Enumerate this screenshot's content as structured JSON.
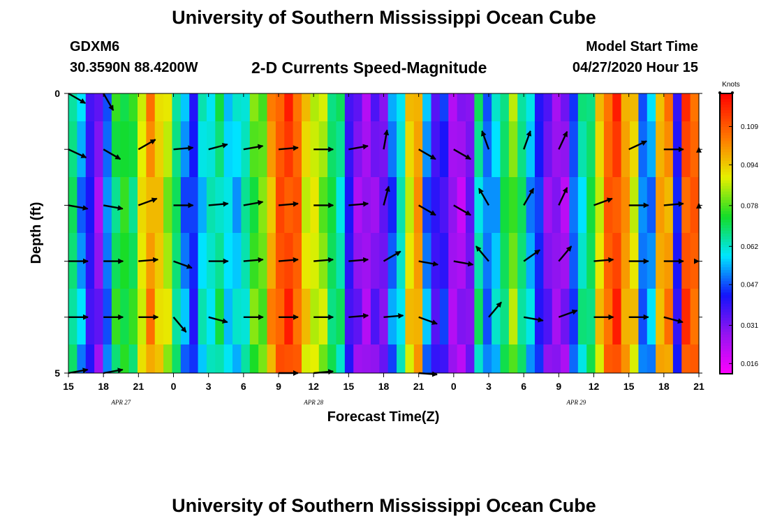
{
  "header": {
    "title": "University of Southern Mississippi Ocean Cube",
    "station_id": "GDXM6",
    "coordinates": "30.3590N 88.4200W",
    "subtitle": "2-D Currents Speed-Magnitude",
    "model_label": "Model Start Time",
    "model_time": "04/27/2020 Hour 15"
  },
  "footer": {
    "title": "University of Southern Mississippi Ocean Cube"
  },
  "chart_data": {
    "type": "heatmap",
    "title": "2-D Currents Speed-Magnitude",
    "xlabel": "Forecast Time(Z)",
    "ylabel": "Depth (ft)",
    "x_tick_labels": [
      "15",
      "18",
      "21",
      "0",
      "3",
      "6",
      "9",
      "12",
      "15",
      "18",
      "21",
      "0",
      "3",
      "6",
      "9",
      "12",
      "15",
      "18",
      "21"
    ],
    "x_range_hours": [
      0,
      54
    ],
    "date_labels": [
      {
        "text": "APR 27",
        "hour": 4.5
      },
      {
        "text": "APR 28",
        "hour": 21
      },
      {
        "text": "APR 29",
        "hour": 43.5
      }
    ],
    "y_tick_labels": [
      "0",
      "5"
    ],
    "ylim": [
      0,
      5
    ],
    "colorbar": {
      "unit": "Knots",
      "ticks": [
        "0.109",
        "0.094",
        "0.078",
        "0.062",
        "0.047",
        "0.031",
        "0.016"
      ],
      "range": [
        0.012,
        0.122
      ]
    },
    "column_speeds": [
      0.068,
      0.052,
      0.04,
      0.028,
      0.05,
      0.07,
      0.074,
      0.07,
      0.09,
      0.1,
      0.094,
      0.084,
      0.068,
      0.05,
      0.044,
      0.058,
      0.062,
      0.066,
      0.058,
      0.056,
      0.064,
      0.076,
      0.08,
      0.098,
      0.11,
      0.112,
      0.108,
      0.09,
      0.088,
      0.082,
      0.07,
      0.064,
      0.04,
      0.028,
      0.026,
      0.03,
      0.032,
      0.048,
      0.062,
      0.09,
      0.1,
      0.05,
      0.038,
      0.04,
      0.026,
      0.024,
      0.032,
      0.064,
      0.05,
      0.056,
      0.07,
      0.08,
      0.068,
      0.054,
      0.044,
      0.03,
      0.028,
      0.026,
      0.048,
      0.062,
      0.07,
      0.09,
      0.108,
      0.112,
      0.1,
      0.09,
      0.05,
      0.052,
      0.098,
      0.1,
      0.042,
      0.11,
      0.108
    ],
    "depth_offsets": [
      0.006,
      0.002,
      -0.004,
      0.0,
      0.006,
      -0.002
    ],
    "vectors": {
      "hours": [
        0,
        3,
        6,
        9,
        12,
        15,
        18,
        21,
        24,
        27,
        30,
        33,
        36,
        39,
        42,
        45,
        48,
        51,
        54
      ],
      "depths_ft": [
        0,
        1,
        2,
        3,
        4,
        5
      ],
      "directions_deg": [
        [
          120,
          150,
          null,
          null,
          null,
          null,
          null,
          null,
          null,
          null,
          null,
          null,
          null,
          null,
          null,
          null,
          null,
          null,
          null
        ],
        [
          115,
          120,
          60,
          85,
          75,
          80,
          85,
          90,
          80,
          10,
          120,
          120,
          340,
          20,
          25,
          null,
          65,
          90,
          85
        ],
        [
          100,
          100,
          70,
          90,
          85,
          80,
          85,
          90,
          85,
          15,
          120,
          120,
          330,
          30,
          25,
          70,
          90,
          85,
          85
        ],
        [
          90,
          90,
          85,
          110,
          90,
          85,
          85,
          85,
          85,
          60,
          100,
          100,
          320,
          55,
          40,
          85,
          90,
          90,
          90
        ],
        [
          90,
          90,
          90,
          140,
          105,
          90,
          90,
          90,
          85,
          85,
          110,
          null,
          40,
          100,
          70,
          90,
          90,
          105,
          null
        ],
        [
          80,
          80,
          null,
          null,
          null,
          null,
          90,
          85,
          null,
          null,
          110,
          null,
          null,
          null,
          null,
          null,
          null,
          null,
          null
        ]
      ]
    }
  }
}
